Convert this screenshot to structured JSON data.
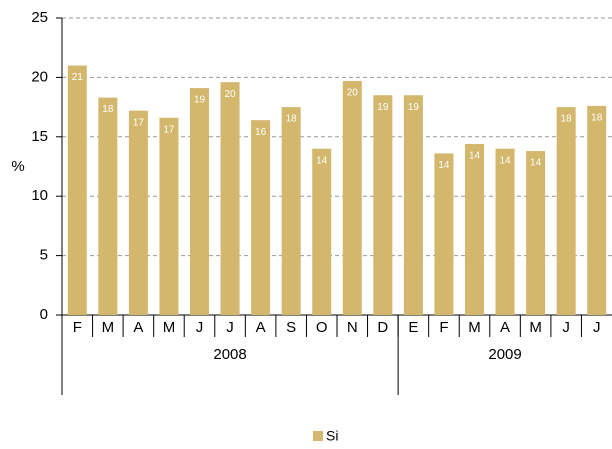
{
  "chart_data": {
    "type": "bar",
    "y_label": "%",
    "categories": [
      "F",
      "M",
      "A",
      "M",
      "J",
      "J",
      "A",
      "S",
      "O",
      "N",
      "D",
      "E",
      "F",
      "M",
      "A",
      "M",
      "J",
      "J"
    ],
    "groups": [
      {
        "label": "2008",
        "size": 11
      },
      {
        "label": "2009",
        "size": 7
      }
    ],
    "series": [
      {
        "name": "Si",
        "color": "#d3b76c",
        "values": [
          21,
          18.3,
          17.2,
          16.6,
          19.1,
          19.6,
          16.4,
          17.5,
          14,
          19.7,
          18.5,
          18.5,
          13.6,
          14.4,
          14,
          13.8,
          17.5,
          17.6
        ],
        "value_labels": [
          "21",
          "18",
          "17",
          "17",
          "19",
          "20",
          "16",
          "18",
          "14",
          "20",
          "19",
          "19",
          "14",
          "14",
          "14",
          "14",
          "18",
          "18"
        ]
      }
    ],
    "ylim": [
      0,
      25
    ],
    "yticks": [
      0,
      5,
      10,
      15,
      20,
      25
    ],
    "grid": true
  }
}
